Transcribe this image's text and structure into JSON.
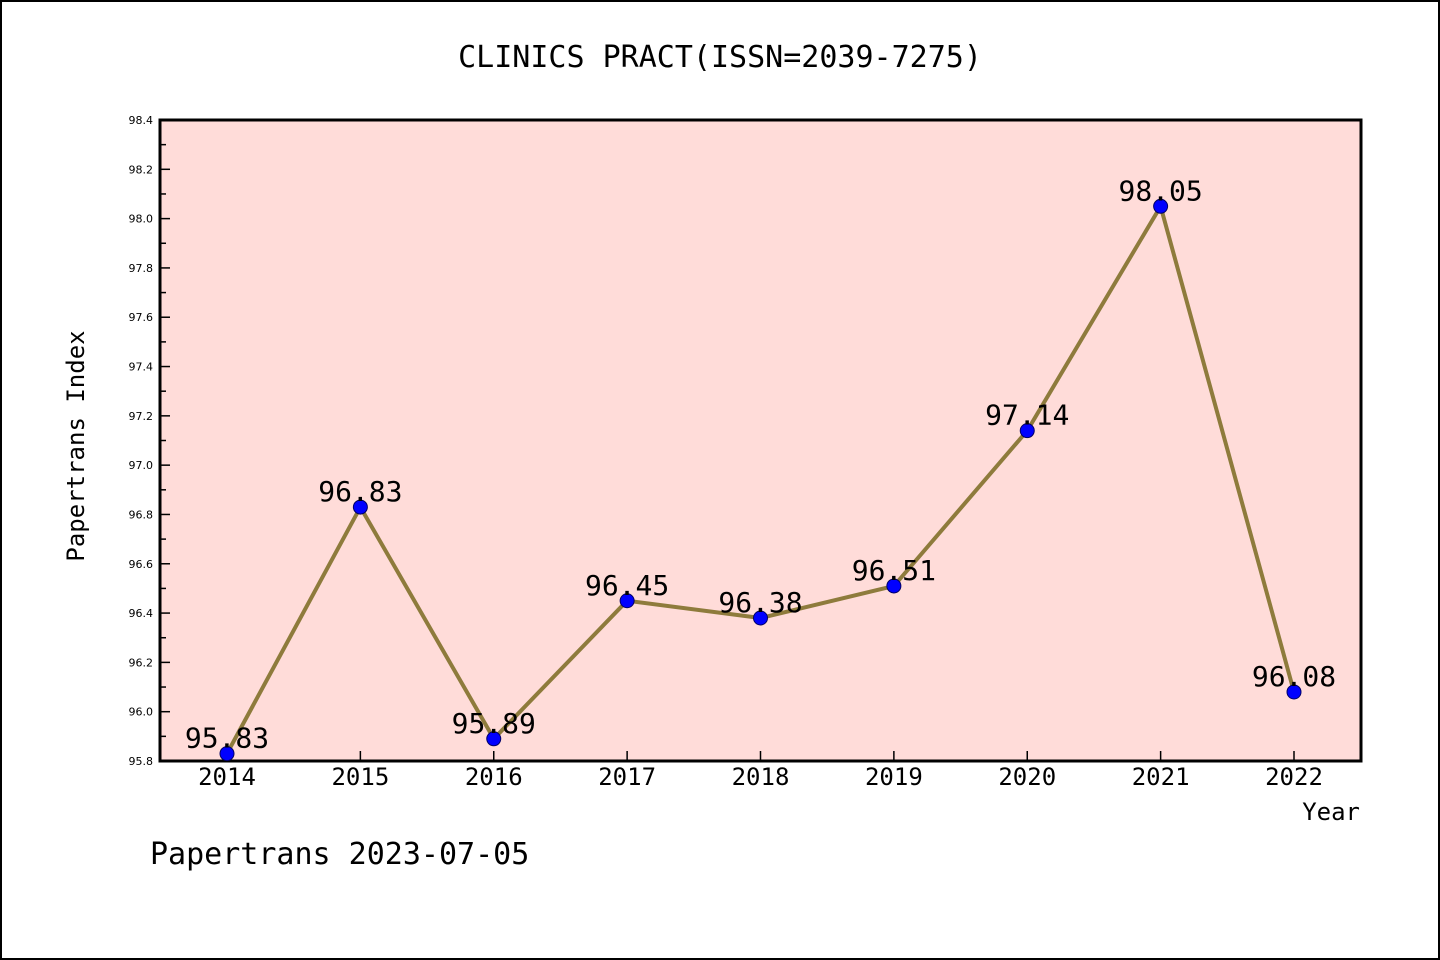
{
  "chart_data": {
    "type": "line",
    "title": "CLINICS PRACT(ISSN=2039-7275)",
    "xlabel": "Year",
    "ylabel": "Papertrans Index",
    "categories": [
      "2014",
      "2015",
      "2016",
      "2017",
      "2018",
      "2019",
      "2020",
      "2021",
      "2022"
    ],
    "series": [
      {
        "values": [
          95.83,
          96.83,
          95.89,
          96.45,
          96.38,
          96.51,
          97.14,
          98.05,
          96.08
        ],
        "data_labels": [
          "95.83",
          "96.83",
          "95.89",
          "96.45",
          "96.38",
          "96.51",
          "97.14",
          "98.05",
          "96.08"
        ]
      }
    ],
    "ylim": [
      95.8,
      98.4
    ],
    "yticks": [
      95.8,
      96.0,
      96.2,
      96.4,
      96.6,
      96.8,
      97.0,
      97.2,
      97.4,
      97.6,
      97.8,
      98.0,
      98.2,
      98.4
    ],
    "ytick_labels": [
      "95.8",
      "96.0",
      "96.2",
      "96.4",
      "96.6",
      "96.8",
      "97.0",
      "97.2",
      "97.4",
      "97.6",
      "97.8",
      "98.0",
      "98.2",
      "98.4"
    ],
    "grid": false,
    "legend": "none",
    "line_color": "#8e7b3c",
    "marker_color": "#0000ff",
    "plot_background": "#ffdcd9"
  },
  "footer": "Papertrans 2023-07-05"
}
